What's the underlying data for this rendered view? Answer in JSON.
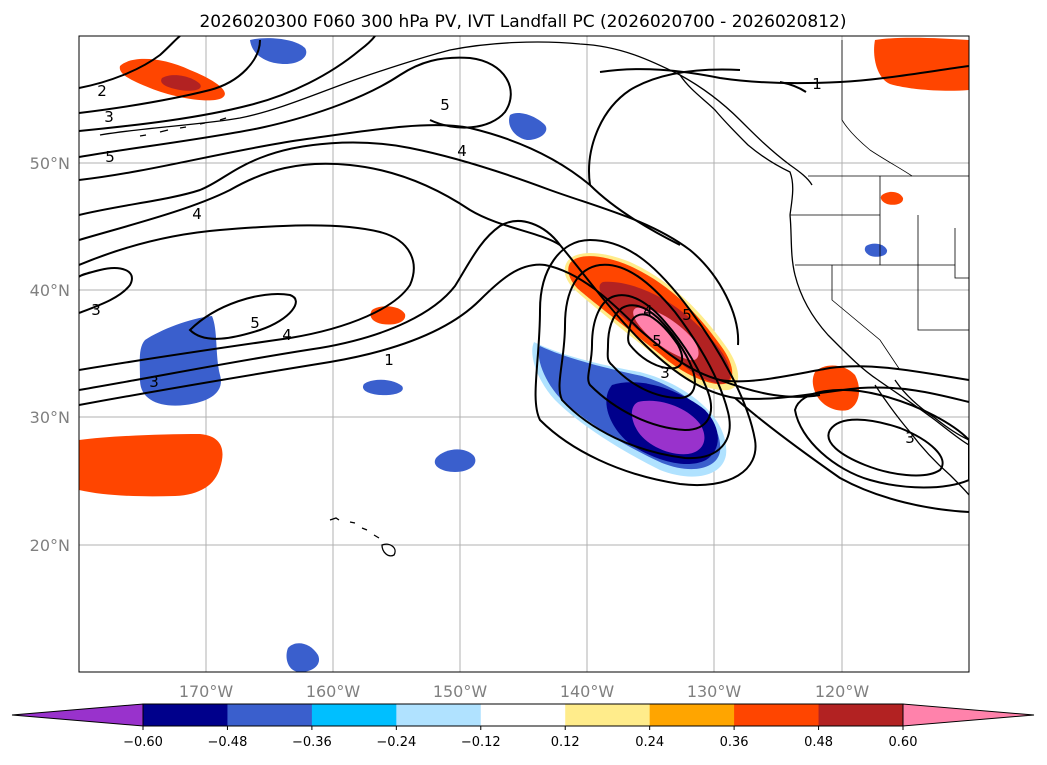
{
  "title": "2026020300 F060 300 hPa PV, IVT Landfall PC (2026020700 - 2026020812)",
  "map": {
    "lon_labels": [
      "170°W",
      "160°W",
      "150°W",
      "140°W",
      "130°W",
      "120°W"
    ],
    "lat_labels": [
      "50°N",
      "40°N",
      "30°N",
      "20°N"
    ],
    "contour_labels": [
      "1",
      "1",
      "2",
      "3",
      "3",
      "3",
      "3",
      "3",
      "4",
      "4",
      "4",
      "4",
      "5",
      "5",
      "5",
      "5",
      "5"
    ]
  },
  "colorbar": {
    "tick_labels": [
      "−0.60",
      "−0.48",
      "−0.36",
      "−0.24",
      "−0.12",
      "0.12",
      "0.24",
      "0.36",
      "0.48",
      "0.60"
    ],
    "colors": [
      "#9932CC",
      "#00008B",
      "#3A5FCD",
      "#00BFFF",
      "#B0E2FF",
      "#FFFFFF",
      "#FFEC8B",
      "#FFA500",
      "#FF4500",
      "#B22222",
      "#FF82AB"
    ]
  }
}
